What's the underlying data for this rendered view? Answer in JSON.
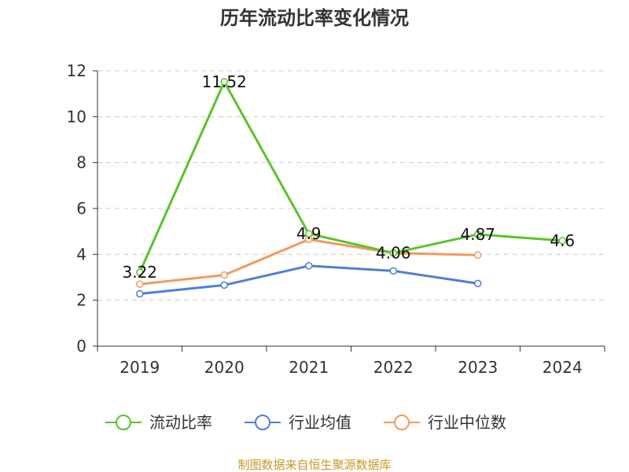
{
  "chart_data": {
    "type": "line",
    "title": "历年流动比率变化情况",
    "categories": [
      "2019",
      "2020",
      "2021",
      "2022",
      "2023",
      "2024"
    ],
    "ylim": [
      0,
      12
    ],
    "yticks": [
      "0",
      "2",
      "4",
      "6",
      "8",
      "10",
      "12"
    ],
    "grid": true,
    "legend_position": "bottom",
    "series": [
      {
        "name": "流动比率",
        "color": "#5ac42a",
        "values": [
          3.22,
          11.52,
          4.9,
          4.06,
          4.87,
          4.6
        ],
        "labels": [
          "3.22",
          "11.52",
          "4.9",
          "4.06",
          "4.87",
          "4.6"
        ]
      },
      {
        "name": "行业均值",
        "color": "#4e7fd6",
        "values": [
          2.28,
          2.66,
          3.5,
          3.28,
          2.73,
          null
        ]
      },
      {
        "name": "行业中位数",
        "color": "#f39a5c",
        "values": [
          2.7,
          3.1,
          4.65,
          4.06,
          3.97,
          null
        ]
      }
    ],
    "source": "制图数据来自恒生聚源数据库"
  }
}
